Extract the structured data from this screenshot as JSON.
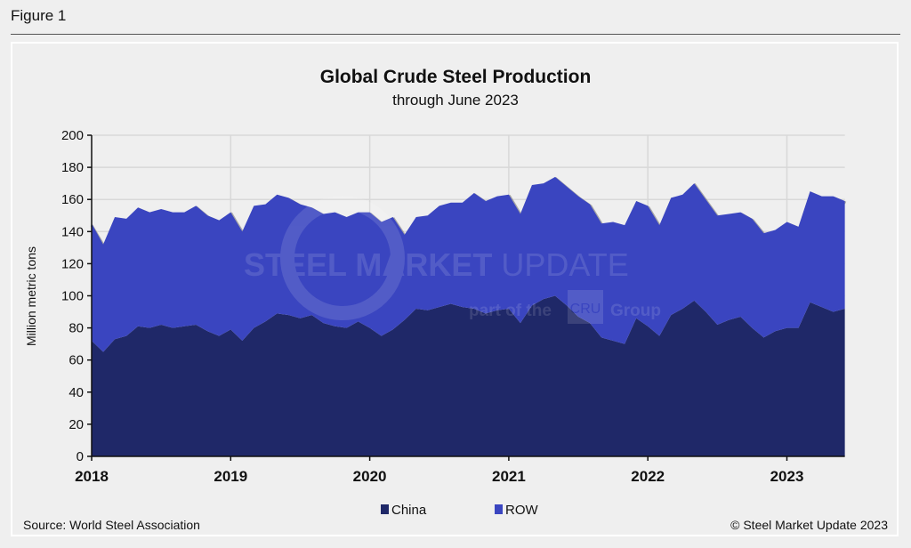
{
  "figure_label": "Figure 1",
  "source": "Source: World Steel Association",
  "copyright": "© Steel Market Update 2023",
  "watermark": {
    "line1a": "STEEL",
    "line1b": "MARKET",
    "line1c": "UPDATE",
    "line2a": "part of the",
    "logo": "CRU",
    "line2b": "Group"
  },
  "colors": {
    "China": "#1f2868",
    "ROW": "#3a45c0",
    "background": "#efefef",
    "grid": "#d8d8d8"
  },
  "chart_data": {
    "type": "area",
    "stacked": true,
    "title": "Global Crude Steel Production",
    "subtitle": "through June 2023",
    "ylabel": "Million metric tons",
    "xlabel": "",
    "ylim": [
      0,
      200
    ],
    "yticks": [
      "0",
      "20",
      "40",
      "60",
      "80",
      "100",
      "120",
      "140",
      "160",
      "180",
      "200"
    ],
    "xticks": [
      "2018",
      "2019",
      "2020",
      "2021",
      "2022",
      "2023"
    ],
    "x_start": "2018-01",
    "x_end": "2023-06",
    "frequency": "monthly",
    "grid": true,
    "legend_placement": "bottom",
    "series": [
      {
        "name": "China",
        "values": [
          72,
          65,
          73,
          75,
          81,
          80,
          82,
          80,
          81,
          82,
          78,
          75,
          79,
          72,
          80,
          84,
          89,
          88,
          86,
          88,
          83,
          81,
          80,
          84,
          80,
          75,
          79,
          85,
          92,
          91,
          93,
          95,
          93,
          92,
          89,
          91,
          92,
          83,
          94,
          98,
          100,
          94,
          87,
          83,
          74,
          72,
          70,
          86,
          81,
          75,
          88,
          92,
          97,
          90,
          82,
          85,
          87,
          80,
          74,
          78,
          80,
          80,
          96,
          93,
          90,
          92
        ]
      },
      {
        "name": "ROW",
        "values": [
          73,
          67,
          76,
          73,
          74,
          72,
          72,
          72,
          71,
          74,
          72,
          72,
          73,
          68,
          76,
          73,
          74,
          73,
          71,
          67,
          68,
          71,
          69,
          68,
          72,
          71,
          70,
          53,
          57,
          59,
          63,
          63,
          65,
          72,
          70,
          71,
          71,
          68,
          75,
          72,
          74,
          74,
          75,
          74,
          71,
          74,
          74,
          73,
          75,
          69,
          73,
          71,
          73,
          70,
          68,
          66,
          65,
          68,
          65,
          63,
          66,
          63,
          69,
          69,
          72,
          67
        ]
      }
    ]
  }
}
